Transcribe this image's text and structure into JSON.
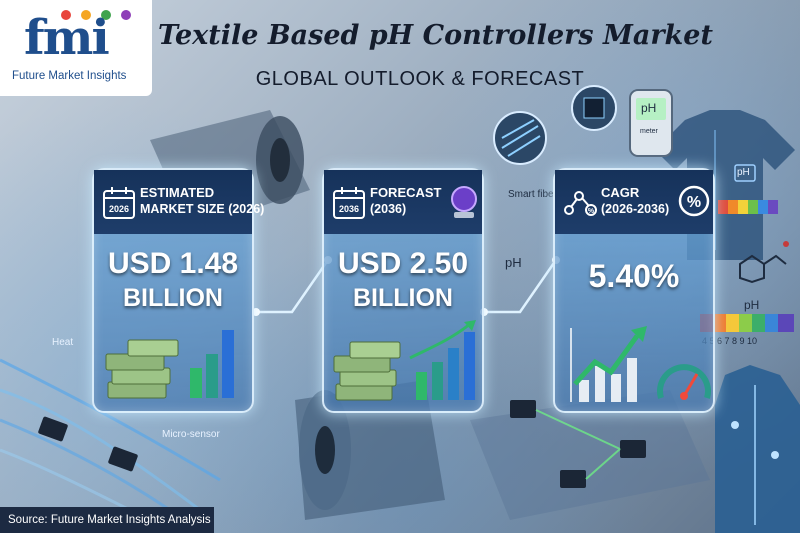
{
  "brand": {
    "logo_mark": "fmi",
    "logo_text": "Future Market Insights"
  },
  "header": {
    "title": "Textile Based pH Controllers Market",
    "subtitle": "GLOBAL OUTLOOK & FORECAST"
  },
  "cards": [
    {
      "icon": "calendar-icon",
      "icon_year": "2026",
      "heading_line1": "ESTIMATED",
      "heading_line2": "MARKET SIZE (2026)",
      "value": "USD 1.48",
      "unit": "BILLION"
    },
    {
      "icon": "calendar-icon",
      "icon_year": "2036",
      "heading_line1": "FORECAST",
      "heading_line2": "(2036)",
      "value": "USD 2.50",
      "unit": "BILLION"
    },
    {
      "icon": "network-percent-icon",
      "heading_line1": "CAGR",
      "heading_line2": "(2026-2036)",
      "value": "5.40%"
    }
  ],
  "illustration_labels": {
    "smart_fiber": "Smart fiber",
    "ph": "pH",
    "heat": "Heat",
    "micro_sensor": "Micro-sensor",
    "ph_scale_title": "pH",
    "ph_scale_ticks": "4 5 6 7 8 9 10",
    "meter_ph": "pH",
    "meter_label": "meter",
    "shirt_ph": "pH"
  },
  "colors": {
    "title": "#141c2c",
    "card_header": "#16325a",
    "accent_green": "#2fb86a",
    "accent_blue": "#2a6fd6",
    "logo_blue": "#1f4e8c"
  },
  "footer": {
    "source": "Source: Future Market Insights Analysis"
  }
}
